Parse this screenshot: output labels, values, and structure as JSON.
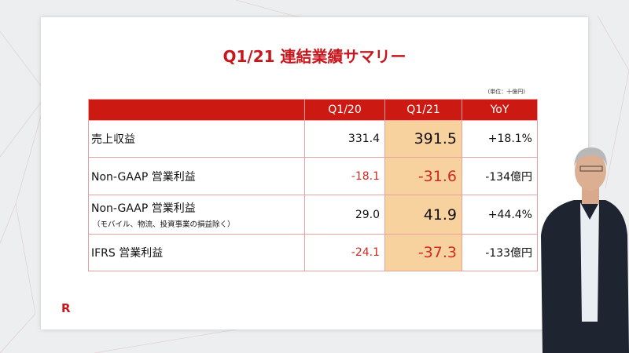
{
  "slide": {
    "title": "Q1/21 連結業績サマリー",
    "unit": "(単位：十億円)",
    "logo": "R",
    "columns": [
      "",
      "Q1/20",
      "Q1/21",
      "YoY"
    ],
    "rows": [
      {
        "label": "売上収益",
        "sublabel": "",
        "q1_20": "331.4",
        "q1_21": "391.5",
        "yoy": "+18.1%",
        "negative": false
      },
      {
        "label": "Non-GAAP 営業利益",
        "sublabel": "",
        "q1_20": "-18.1",
        "q1_21": "-31.6",
        "yoy": "-134億円",
        "negative": true
      },
      {
        "label": "Non-GAAP 営業利益",
        "sublabel": "（モバイル、物流、投資事業の損益除く）",
        "q1_20": "29.0",
        "q1_21": "41.9",
        "yoy": "+44.4%",
        "negative": false
      },
      {
        "label": "IFRS 営業利益",
        "sublabel": "",
        "q1_20": "-24.1",
        "q1_21": "-37.3",
        "yoy": "-133億円",
        "negative": true
      }
    ]
  },
  "colors": {
    "accent": "#cc1a12",
    "highlight": "#f7d29e",
    "negative": "#d12a20"
  }
}
